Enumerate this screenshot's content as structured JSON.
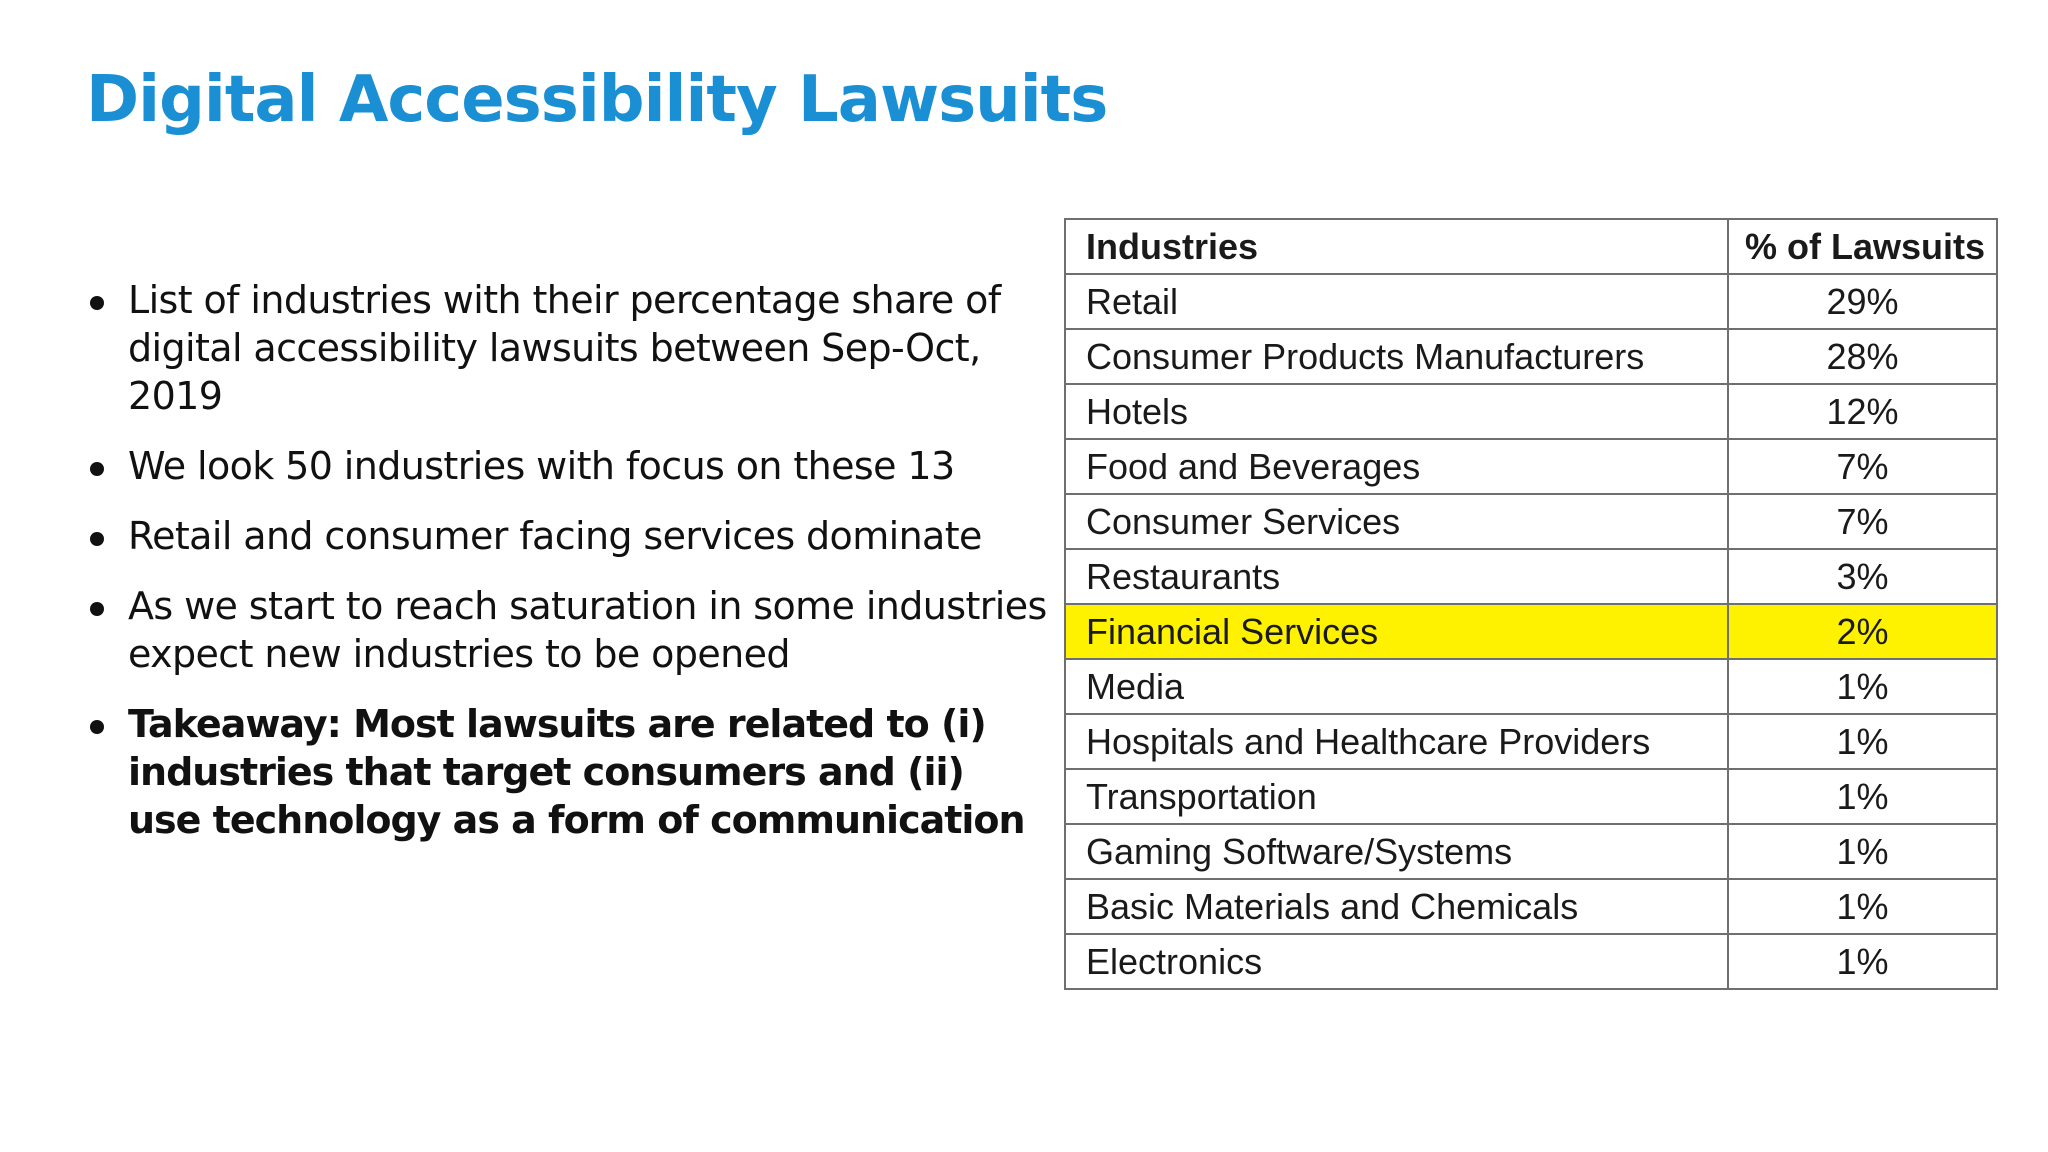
{
  "title": "Digital Accessibility Lawsuits",
  "bullets": [
    "List of industries with their percentage share of digital accessibility lawsuits between Sep-Oct, 2019",
    "We look 50 industries with focus on these 13",
    "Retail and consumer facing services dominate",
    "As we start to reach saturation in some industries expect new industries to be opened",
    "Takeaway: Most lawsuits are related to (i) industries that target consumers and (ii) use technology as a form of communication"
  ],
  "table": {
    "headers": [
      "Industries",
      "% of Lawsuits"
    ],
    "highlight_color": "#fff200",
    "rows": [
      {
        "industry": "Retail",
        "percent": "29%"
      },
      {
        "industry": "Consumer Products Manufacturers",
        "percent": "28%"
      },
      {
        "industry": "Hotels",
        "percent": "12%"
      },
      {
        "industry": "Food and Beverages",
        "percent": "7%"
      },
      {
        "industry": "Consumer Services",
        "percent": "7%"
      },
      {
        "industry": "Restaurants",
        "percent": "3%"
      },
      {
        "industry": "Financial Services",
        "percent": "2%"
      },
      {
        "industry": "Media",
        "percent": "1%"
      },
      {
        "industry": "Hospitals and Healthcare Providers",
        "percent": "1%"
      },
      {
        "industry": "Transportation",
        "percent": "1%"
      },
      {
        "industry": "Gaming Software/Systems",
        "percent": "1%"
      },
      {
        "industry": "Basic Materials and Chemicals",
        "percent": "1%"
      },
      {
        "industry": "Electronics",
        "percent": "1%"
      }
    ]
  }
}
